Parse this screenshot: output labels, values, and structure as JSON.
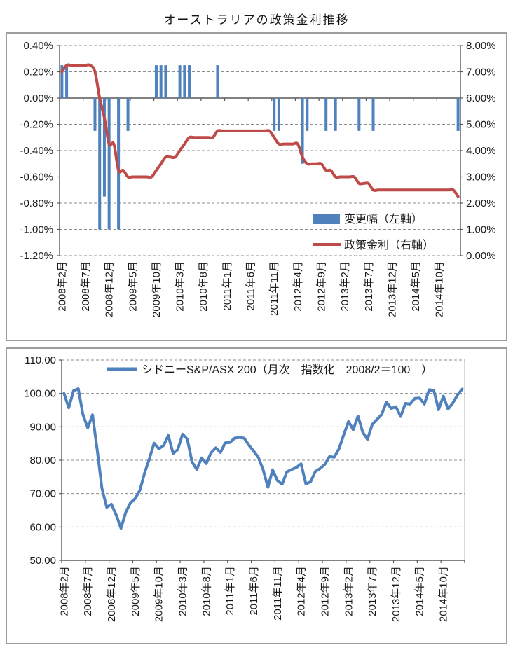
{
  "page": {
    "title": "オーストラリアの政策金利推移"
  },
  "colors": {
    "bar_blue": "#4F81BD",
    "line_red": "#BE4B48",
    "line_blue": "#4F81BD",
    "grid": "#8C8C8C",
    "axis": "#595959",
    "axis_light": "#B3B3B3",
    "text": "#1A1A1A",
    "border": "#9D9D9D"
  },
  "x_tick_labels": [
    "2008年2月",
    "2008年7月",
    "2008年12月",
    "2009年5月",
    "2009年10月",
    "2010年3月",
    "2010年8月",
    "2011年1月",
    "2011年6月",
    "2011年11月",
    "2012年4月",
    "2012年9月",
    "2013年2月",
    "2013年7月",
    "2013年12月",
    "2014年5月",
    "2014年10月"
  ],
  "chart_data": [
    {
      "type": "bar",
      "title": "オーストラリアの政策金利推移",
      "n_months": 85,
      "x_start": "2008年2月",
      "x_tick_interval": 5,
      "left_axis": {
        "ticks": [
          "0.40%",
          "0.20%",
          "0.00%",
          "-0.20%",
          "-0.40%",
          "-0.60%",
          "-0.80%",
          "-1.00%",
          "-1.20%"
        ],
        "max": 0.4,
        "min": -1.2
      },
      "right_axis": {
        "ticks": [
          "8.00%",
          "7.00%",
          "6.00%",
          "5.00%",
          "4.00%",
          "3.00%",
          "2.00%",
          "1.00%",
          "0.00%"
        ],
        "max": 8,
        "min": 0
      },
      "series": [
        {
          "name": "変更幅（左軸）",
          "type": "bar",
          "axis": "left",
          "changes": [
            {
              "m": 0,
              "v": 0.25
            },
            {
              "m": 1,
              "v": 0.25
            },
            {
              "m": 7,
              "v": -0.25
            },
            {
              "m": 8,
              "v": -1.0
            },
            {
              "m": 9,
              "v": -0.75
            },
            {
              "m": 10,
              "v": -1.0
            },
            {
              "m": 12,
              "v": -1.0
            },
            {
              "m": 14,
              "v": -0.25
            },
            {
              "m": 20,
              "v": 0.25
            },
            {
              "m": 21,
              "v": 0.25
            },
            {
              "m": 22,
              "v": 0.25
            },
            {
              "m": 25,
              "v": 0.25
            },
            {
              "m": 26,
              "v": 0.25
            },
            {
              "m": 27,
              "v": 0.25
            },
            {
              "m": 33,
              "v": 0.25
            },
            {
              "m": 45,
              "v": -0.25
            },
            {
              "m": 46,
              "v": -0.25
            },
            {
              "m": 51,
              "v": -0.5
            },
            {
              "m": 52,
              "v": -0.25
            },
            {
              "m": 56,
              "v": -0.25
            },
            {
              "m": 58,
              "v": -0.25
            },
            {
              "m": 63,
              "v": -0.25
            },
            {
              "m": 66,
              "v": -0.25
            },
            {
              "m": 84,
              "v": -0.25
            }
          ]
        },
        {
          "name": "政策金利（右軸）",
          "type": "line",
          "axis": "right",
          "values": [
            7.0,
            7.25,
            7.25,
            7.25,
            7.25,
            7.25,
            7.25,
            7.0,
            6.0,
            5.25,
            4.25,
            4.25,
            3.25,
            3.25,
            3.0,
            3.0,
            3.0,
            3.0,
            3.0,
            3.0,
            3.25,
            3.5,
            3.75,
            3.75,
            3.75,
            4.0,
            4.25,
            4.5,
            4.5,
            4.5,
            4.5,
            4.5,
            4.5,
            4.75,
            4.75,
            4.75,
            4.75,
            4.75,
            4.75,
            4.75,
            4.75,
            4.75,
            4.75,
            4.75,
            4.75,
            4.5,
            4.25,
            4.25,
            4.25,
            4.25,
            4.25,
            3.75,
            3.5,
            3.5,
            3.5,
            3.5,
            3.25,
            3.25,
            3.0,
            3.0,
            3.0,
            3.0,
            3.0,
            2.75,
            2.75,
            2.75,
            2.5,
            2.5,
            2.5,
            2.5,
            2.5,
            2.5,
            2.5,
            2.5,
            2.5,
            2.5,
            2.5,
            2.5,
            2.5,
            2.5,
            2.5,
            2.5,
            2.5,
            2.5,
            2.25
          ]
        }
      ]
    },
    {
      "type": "line",
      "n_months": 85,
      "x_start": "2008年2月",
      "x_tick_interval": 5,
      "y_ticks": [
        "110.00",
        "100.00",
        "90.00",
        "80.00",
        "70.00",
        "60.00",
        "50.00"
      ],
      "ylim": [
        50,
        110
      ],
      "series": [
        {
          "name": "シドニーS&P/ASX 200（月次　指数化　2008/2＝100　）",
          "values": [
            100.0,
            95.7,
            100.8,
            101.4,
            93.6,
            89.7,
            93.6,
            83.1,
            71.5,
            65.9,
            66.8,
            63.6,
            59.6,
            64.3,
            67.2,
            68.5,
            71.0,
            76.2,
            80.4,
            85.1,
            83.4,
            84.4,
            87.4,
            82.0,
            83.2,
            87.8,
            86.3,
            79.5,
            77.2,
            80.7,
            79.0,
            82.2,
            83.7,
            82.3,
            85.2,
            85.3,
            86.6,
            86.8,
            86.6,
            84.5,
            82.7,
            80.8,
            77.1,
            71.9,
            77.1,
            73.9,
            72.8,
            76.5,
            77.2,
            77.8,
            78.9,
            72.9,
            73.5,
            76.6,
            77.5,
            78.7,
            81.1,
            80.9,
            83.4,
            87.6,
            91.6,
            89.1,
            93.2,
            88.4,
            86.2,
            90.7,
            92.2,
            93.7,
            97.4,
            95.5,
            96.0,
            93.1,
            97.0,
            96.8,
            98.5,
            98.6,
            96.8,
            101.1,
            100.9,
            95.1,
            99.2,
            95.3,
            97.1,
            99.6,
            101.3
          ]
        }
      ]
    }
  ]
}
